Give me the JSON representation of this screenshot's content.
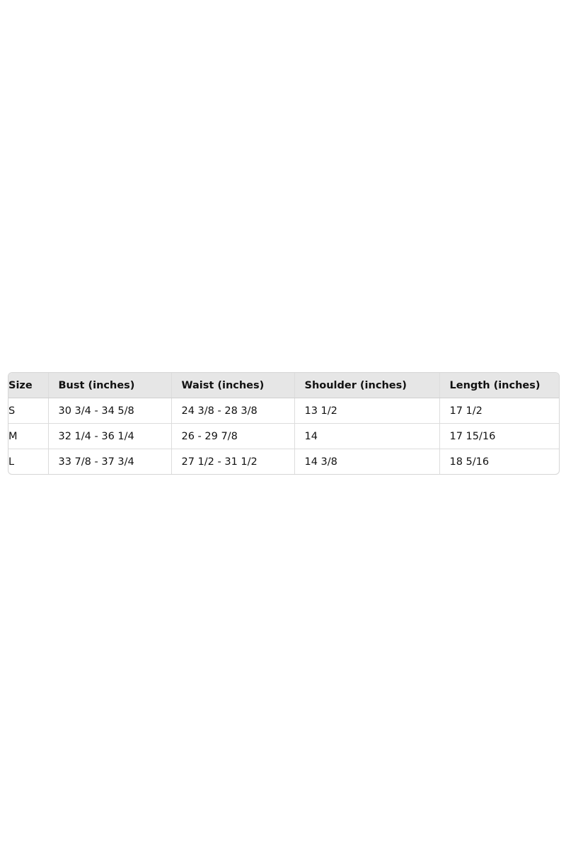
{
  "size_chart": {
    "headers": [
      "Size",
      "Bust (inches)",
      "Waist (inches)",
      "Shoulder (inches)",
      "Length (inches)"
    ],
    "rows": [
      [
        "S",
        "30 3/4 - 34 5/8",
        "24 3/8 - 28 3/8",
        "13 1/2",
        "17 1/2"
      ],
      [
        "M",
        "32 1/4 - 36 1/4",
        "26 - 29 7/8",
        "14",
        "17 15/16"
      ],
      [
        "L",
        "33 7/8 - 37 3/4",
        "27 1/2 - 31 1/2",
        "14 3/8",
        "18 5/16"
      ]
    ]
  }
}
